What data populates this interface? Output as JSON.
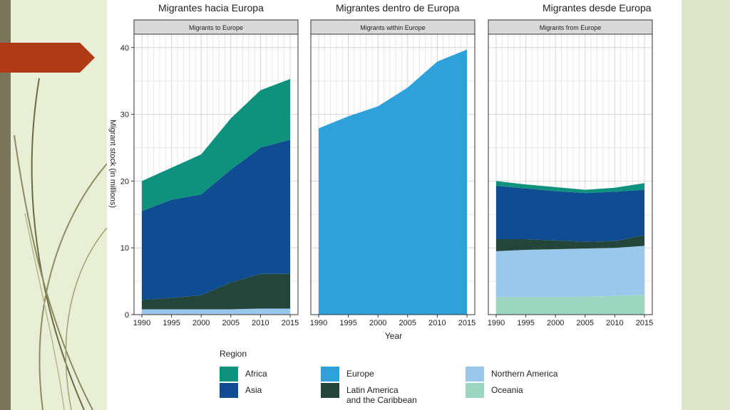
{
  "slide_titles": [
    "Migrantes hacia Europa",
    "Migrantes dentro de Europa",
    "Migrantes desde Europa"
  ],
  "chart_data": {
    "type": "area",
    "stacked": true,
    "x": [
      1990,
      1995,
      2000,
      2005,
      2010,
      2015
    ],
    "xticks": [
      "1990",
      "1995",
      "2000",
      "2005",
      "2010",
      "2015"
    ],
    "yticks": [
      "0",
      "10",
      "20",
      "30",
      "40"
    ],
    "ylim": [
      0,
      42
    ],
    "xlabel": "Year",
    "ylabel": "Migrant stock (in millions)",
    "grid": true,
    "legend_title": "Region",
    "legend_position": "bottom",
    "region_colors": {
      "Africa": "#0e927e",
      "Asia": "#0f4c91",
      "Europe": "#2fa1da",
      "Latin America and the Caribbean": "#24463a",
      "Northern America": "#99c8ec",
      "Oceania": "#9dd6c0"
    },
    "legend": [
      {
        "name": "Africa",
        "label": "Africa",
        "color": "#0e927e"
      },
      {
        "name": "Asia",
        "label": "Asia",
        "color": "#0f4c91"
      },
      {
        "name": "Europe",
        "label": "Europe",
        "color": "#2fa1da"
      },
      {
        "name": "Latin America and the Caribbean",
        "label": "Latin America\nand the Caribbean",
        "color": "#24463a"
      },
      {
        "name": "Northern America",
        "label": "Northern America",
        "color": "#99c8ec"
      },
      {
        "name": "Oceania",
        "label": "Oceania",
        "color": "#9dd6c0"
      }
    ],
    "panels": [
      {
        "title": "Migrants to Europe",
        "series": [
          {
            "name": "Northern America",
            "values": [
              0.8,
              0.8,
              0.8,
              0.8,
              0.9,
              0.9
            ]
          },
          {
            "name": "Latin America and the Caribbean",
            "values": [
              1.4,
              1.7,
              2.1,
              4.0,
              5.2,
              5.2
            ]
          },
          {
            "name": "Asia",
            "values": [
              13.3,
              14.7,
              15.1,
              16.9,
              18.9,
              20.1
            ]
          },
          {
            "name": "Africa",
            "values": [
              4.5,
              4.8,
              6.0,
              7.7,
              8.6,
              9.1
            ]
          }
        ]
      },
      {
        "title": "Migrants within Europe",
        "series": [
          {
            "name": "Europe",
            "values": [
              27.9,
              29.7,
              31.2,
              34.0,
              37.9,
              39.7
            ]
          }
        ]
      },
      {
        "title": "Migrants from Europe",
        "series": [
          {
            "name": "Oceania",
            "values": [
              2.6,
              2.6,
              2.6,
              2.7,
              2.8,
              3.0
            ]
          },
          {
            "name": "Northern America",
            "values": [
              6.9,
              7.1,
              7.2,
              7.2,
              7.2,
              7.3
            ]
          },
          {
            "name": "Latin America and the Caribbean",
            "values": [
              1.8,
              1.6,
              1.3,
              1.0,
              1.0,
              1.6
            ]
          },
          {
            "name": "Asia",
            "values": [
              8.0,
              7.6,
              7.4,
              7.3,
              7.4,
              6.8
            ]
          },
          {
            "name": "Africa",
            "values": [
              0.7,
              0.6,
              0.6,
              0.5,
              0.6,
              1.0
            ]
          }
        ]
      }
    ]
  }
}
